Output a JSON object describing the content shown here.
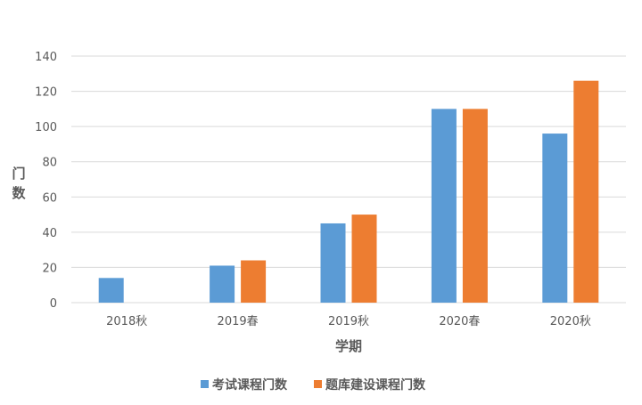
{
  "chart_data": {
    "type": "bar",
    "categories": [
      "2018秋",
      "2019春",
      "2019秋",
      "2020春",
      "2020秋"
    ],
    "series": [
      {
        "name": "考试课程门数",
        "values": [
          14,
          21,
          45,
          110,
          96
        ],
        "color": "#5B9BD5"
      },
      {
        "name": "题库建设课程门数",
        "values": [
          0,
          24,
          50,
          110,
          126
        ],
        "color": "#ED7D31"
      }
    ],
    "title": "",
    "xlabel": "学期",
    "ylabel": "门数",
    "ylim": [
      0,
      140
    ],
    "yticks": [
      0,
      20,
      40,
      60,
      80,
      100,
      120,
      140
    ],
    "grid": true,
    "legend_position": "bottom",
    "gridline_color": "#D9D9D9",
    "text_color": "#595959"
  }
}
